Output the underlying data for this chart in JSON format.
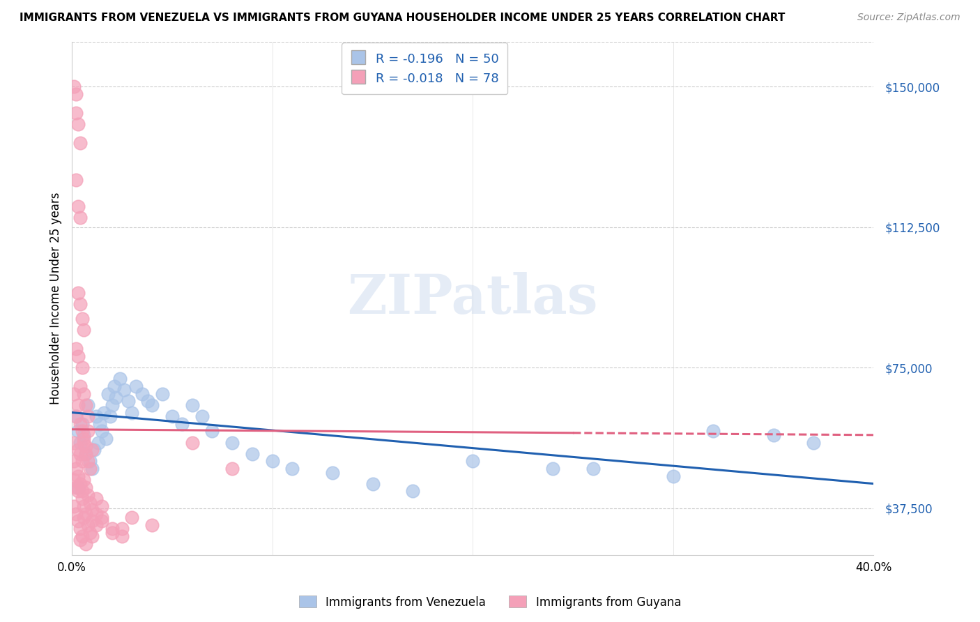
{
  "title": "IMMIGRANTS FROM VENEZUELA VS IMMIGRANTS FROM GUYANA HOUSEHOLDER INCOME UNDER 25 YEARS CORRELATION CHART",
  "source": "Source: ZipAtlas.com",
  "ylabel": "Householder Income Under 25 years",
  "xlim": [
    0.0,
    0.4
  ],
  "ylim": [
    25000,
    162000
  ],
  "yticks": [
    37500,
    75000,
    112500,
    150000
  ],
  "ytick_labels": [
    "$37,500",
    "$75,000",
    "$112,500",
    "$150,000"
  ],
  "xticks": [
    0.0,
    0.1,
    0.2,
    0.3,
    0.4
  ],
  "xtick_labels": [
    "0.0%",
    "",
    "",
    "",
    "40.0%"
  ],
  "blue_R": -0.196,
  "blue_N": 50,
  "pink_R": -0.018,
  "pink_N": 78,
  "blue_color": "#aac4e8",
  "pink_color": "#f4a0b8",
  "blue_line_color": "#2060b0",
  "pink_line_color": "#e06080",
  "watermark": "ZIPatlas",
  "legend_label_blue": "Immigrants from Venezuela",
  "legend_label_pink": "Immigrants from Guyana",
  "blue_scatter": [
    [
      0.002,
      62000
    ],
    [
      0.003,
      58000
    ],
    [
      0.004,
      55000
    ],
    [
      0.005,
      60000
    ],
    [
      0.006,
      57000
    ],
    [
      0.007,
      52000
    ],
    [
      0.008,
      65000
    ],
    [
      0.009,
      50000
    ],
    [
      0.01,
      48000
    ],
    [
      0.011,
      53000
    ],
    [
      0.012,
      62000
    ],
    [
      0.013,
      55000
    ],
    [
      0.014,
      60000
    ],
    [
      0.015,
      58000
    ],
    [
      0.016,
      63000
    ],
    [
      0.017,
      56000
    ],
    [
      0.018,
      68000
    ],
    [
      0.019,
      62000
    ],
    [
      0.02,
      65000
    ],
    [
      0.021,
      70000
    ],
    [
      0.022,
      67000
    ],
    [
      0.024,
      72000
    ],
    [
      0.026,
      69000
    ],
    [
      0.028,
      66000
    ],
    [
      0.03,
      63000
    ],
    [
      0.032,
      70000
    ],
    [
      0.035,
      68000
    ],
    [
      0.038,
      66000
    ],
    [
      0.04,
      65000
    ],
    [
      0.045,
      68000
    ],
    [
      0.05,
      62000
    ],
    [
      0.055,
      60000
    ],
    [
      0.06,
      65000
    ],
    [
      0.065,
      62000
    ],
    [
      0.07,
      58000
    ],
    [
      0.08,
      55000
    ],
    [
      0.09,
      52000
    ],
    [
      0.1,
      50000
    ],
    [
      0.11,
      48000
    ],
    [
      0.13,
      47000
    ],
    [
      0.15,
      44000
    ],
    [
      0.17,
      42000
    ],
    [
      0.2,
      50000
    ],
    [
      0.24,
      48000
    ],
    [
      0.26,
      48000
    ],
    [
      0.3,
      46000
    ],
    [
      0.32,
      58000
    ],
    [
      0.35,
      57000
    ],
    [
      0.37,
      55000
    ],
    [
      0.003,
      43000
    ]
  ],
  "pink_scatter": [
    [
      0.001,
      150000
    ],
    [
      0.002,
      148000
    ],
    [
      0.002,
      143000
    ],
    [
      0.003,
      140000
    ],
    [
      0.004,
      135000
    ],
    [
      0.002,
      125000
    ],
    [
      0.003,
      118000
    ],
    [
      0.004,
      115000
    ],
    [
      0.003,
      95000
    ],
    [
      0.004,
      92000
    ],
    [
      0.005,
      88000
    ],
    [
      0.006,
      85000
    ],
    [
      0.002,
      80000
    ],
    [
      0.003,
      78000
    ],
    [
      0.005,
      75000
    ],
    [
      0.001,
      68000
    ],
    [
      0.003,
      65000
    ],
    [
      0.004,
      70000
    ],
    [
      0.006,
      68000
    ],
    [
      0.007,
      65000
    ],
    [
      0.008,
      62000
    ],
    [
      0.002,
      62000
    ],
    [
      0.004,
      60000
    ],
    [
      0.005,
      58000
    ],
    [
      0.006,
      56000
    ],
    [
      0.007,
      54000
    ],
    [
      0.008,
      58000
    ],
    [
      0.001,
      55000
    ],
    [
      0.003,
      53000
    ],
    [
      0.004,
      52000
    ],
    [
      0.005,
      50000
    ],
    [
      0.006,
      55000
    ],
    [
      0.007,
      52000
    ],
    [
      0.008,
      50000
    ],
    [
      0.009,
      48000
    ],
    [
      0.01,
      53000
    ],
    [
      0.001,
      50000
    ],
    [
      0.002,
      48000
    ],
    [
      0.003,
      46000
    ],
    [
      0.004,
      44000
    ],
    [
      0.005,
      42000
    ],
    [
      0.006,
      45000
    ],
    [
      0.007,
      43000
    ],
    [
      0.008,
      41000
    ],
    [
      0.009,
      39000
    ],
    [
      0.01,
      37000
    ],
    [
      0.012,
      40000
    ],
    [
      0.015,
      38000
    ],
    [
      0.001,
      38000
    ],
    [
      0.002,
      36000
    ],
    [
      0.003,
      34000
    ],
    [
      0.004,
      32000
    ],
    [
      0.005,
      30000
    ],
    [
      0.006,
      35000
    ],
    [
      0.008,
      33000
    ],
    [
      0.009,
      31000
    ],
    [
      0.01,
      30000
    ],
    [
      0.012,
      33000
    ],
    [
      0.015,
      35000
    ],
    [
      0.02,
      32000
    ],
    [
      0.025,
      30000
    ],
    [
      0.03,
      35000
    ],
    [
      0.04,
      33000
    ],
    [
      0.001,
      45000
    ],
    [
      0.002,
      43000
    ],
    [
      0.003,
      42000
    ],
    [
      0.005,
      40000
    ],
    [
      0.006,
      38000
    ],
    [
      0.007,
      36000
    ],
    [
      0.01,
      34000
    ],
    [
      0.012,
      36000
    ],
    [
      0.015,
      34000
    ],
    [
      0.02,
      31000
    ],
    [
      0.025,
      32000
    ],
    [
      0.06,
      55000
    ],
    [
      0.08,
      48000
    ],
    [
      0.004,
      29000
    ],
    [
      0.007,
      28000
    ]
  ]
}
